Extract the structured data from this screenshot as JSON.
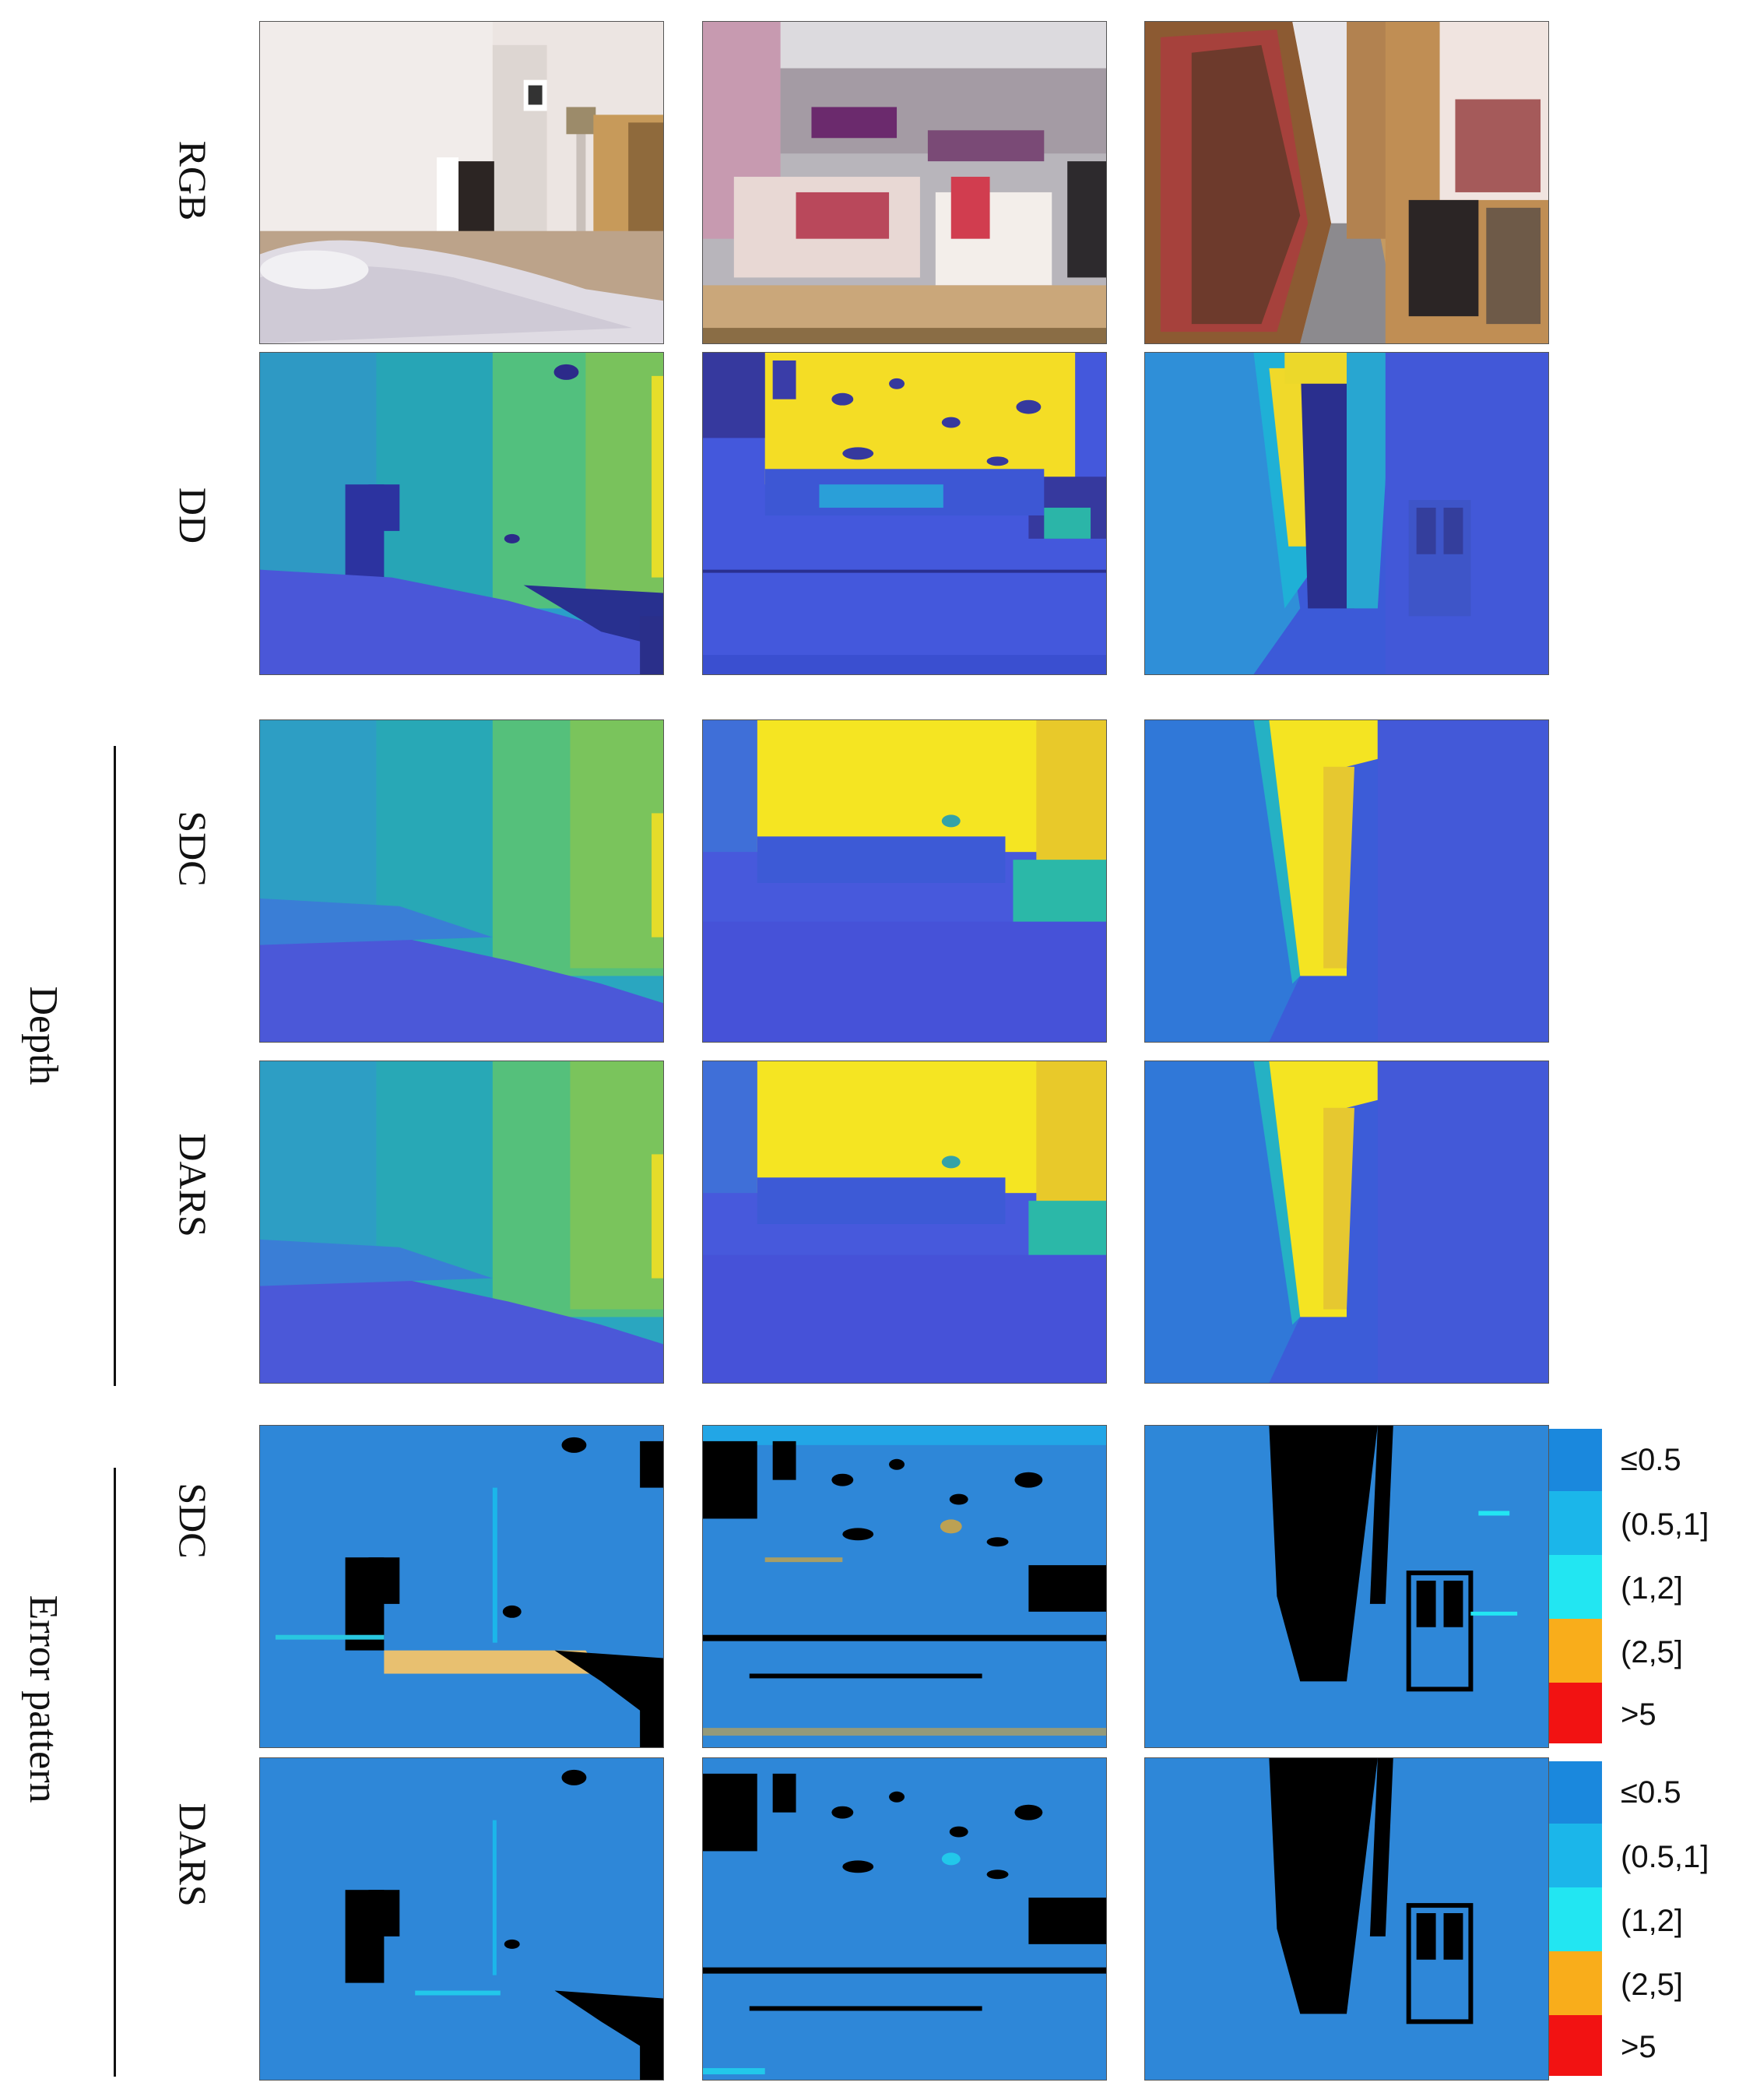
{
  "rows": {
    "rgb": "RGB",
    "dd": "DD",
    "sdc_depth": "SDC",
    "dars_depth": "DARS",
    "sdc_error": "SDC",
    "dars_error": "DARS"
  },
  "groups": {
    "depth": "Depth",
    "error": "Error pattern"
  },
  "legend": {
    "items": [
      {
        "label": "≤0.5",
        "color": "#1a88dd"
      },
      {
        "label": "(0.5,1]",
        "color": "#1bb6ea"
      },
      {
        "label": "(1,2]",
        "color": "#22e6f2"
      },
      {
        "label": "(2,5]",
        "color": "#f9ad1b"
      },
      {
        "label": ">5",
        "color": "#f21212"
      }
    ]
  },
  "colors": {
    "depth_near": "#3d4fd8",
    "depth_mid": "#2aa9c0",
    "depth_midfar": "#56c07a",
    "depth_far": "#f4e624",
    "error_base": "#2e87d8",
    "missing": "#000000"
  }
}
